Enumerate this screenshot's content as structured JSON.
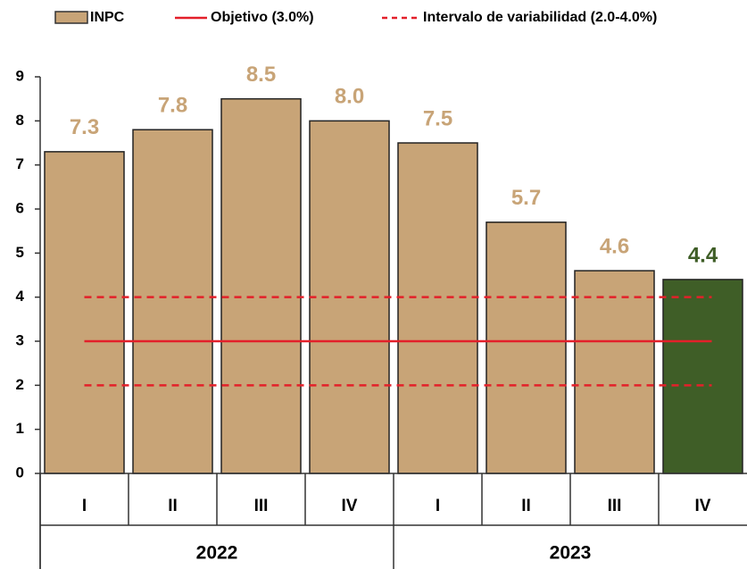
{
  "chart_data": {
    "type": "bar",
    "categories": [
      "I",
      "II",
      "III",
      "IV",
      "I",
      "II",
      "III",
      "IV"
    ],
    "group_labels": [
      "2022",
      "2023"
    ],
    "series": [
      {
        "name": "INPC",
        "color": "#c8a477",
        "highlight_color": "#3f5e27",
        "values": [
          7.3,
          7.8,
          8.5,
          8.0,
          7.5,
          5.7,
          4.6,
          4.4
        ],
        "value_labels": [
          "7.3",
          "7.8",
          "8.5",
          "8.0",
          "7.5",
          "5.7",
          "4.6",
          "4.4"
        ]
      }
    ],
    "target": {
      "name": "Objetivo (3.0%)",
      "value": 3.0,
      "color": "#e3202a"
    },
    "band": {
      "name": "Intervalo de variabilidad (2.0-4.0%)",
      "values": [
        2.0,
        4.0
      ],
      "color": "#e3202a"
    },
    "ylim": [
      0,
      9
    ],
    "yticks": [
      0,
      1,
      2,
      3,
      4,
      5,
      6,
      7,
      8,
      9
    ]
  }
}
